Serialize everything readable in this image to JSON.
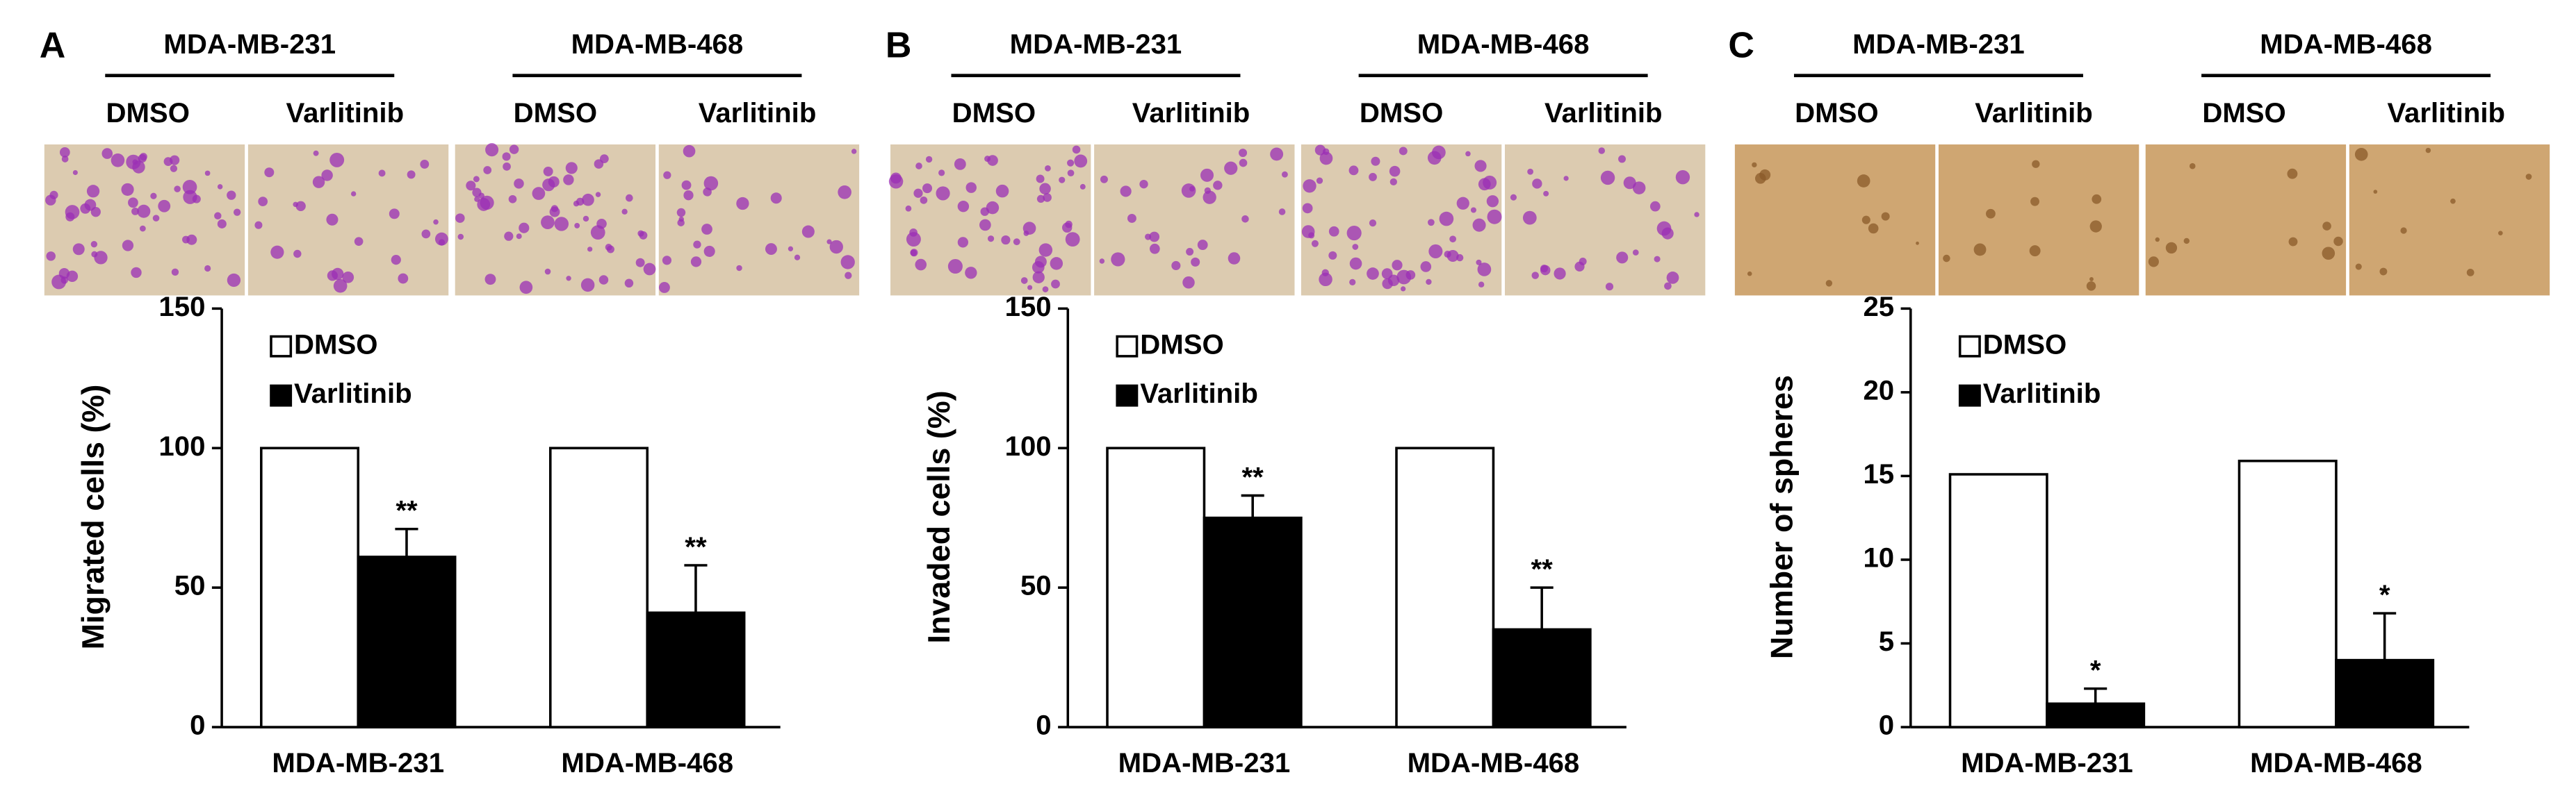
{
  "chart_data": [
    {
      "type": "bar",
      "panel": "A",
      "groups": [
        "MDA-MB-231",
        "MDA-MB-468"
      ],
      "treatments": [
        "DMSO",
        "Varlitinib",
        "DMSO",
        "Varlitinib"
      ],
      "ylabel": "Migrated cells (%)",
      "categories": [
        "MDA-MB-231",
        "MDA-MB-468"
      ],
      "series": [
        {
          "name": "DMSO",
          "color": "#ffffff",
          "values": [
            100,
            100
          ]
        },
        {
          "name": "Varlitinib",
          "color": "#000000",
          "values": [
            61,
            41
          ],
          "errors": [
            10,
            17
          ],
          "annotations": [
            "**",
            "**"
          ]
        }
      ],
      "ylim": [
        0,
        150
      ],
      "yticks": [
        0,
        50,
        100,
        150
      ]
    },
    {
      "type": "bar",
      "panel": "B",
      "groups": [
        "MDA-MB-231",
        "MDA-MB-468"
      ],
      "treatments": [
        "DMSO",
        "Varlitinib",
        "DMSO",
        "Varlitinib"
      ],
      "ylabel": "Invaded cells (%)",
      "categories": [
        "MDA-MB-231",
        "MDA-MB-468"
      ],
      "series": [
        {
          "name": "DMSO",
          "color": "#ffffff",
          "values": [
            100,
            100
          ]
        },
        {
          "name": "Varlitinib",
          "color": "#000000",
          "values": [
            75,
            35
          ],
          "errors": [
            8,
            15
          ],
          "annotations": [
            "**",
            "**"
          ]
        }
      ],
      "ylim": [
        0,
        150
      ],
      "yticks": [
        0,
        50,
        100,
        150
      ]
    },
    {
      "type": "bar",
      "panel": "C",
      "groups": [
        "MDA-MB-231",
        "MDA-MB-468"
      ],
      "treatments": [
        "DMSO",
        "Varlitinib",
        "DMSO",
        "Varlitinib"
      ],
      "ylabel": "Number of spheres",
      "categories": [
        "MDA-MB-231",
        "MDA-MB-468"
      ],
      "series": [
        {
          "name": "DMSO",
          "color": "#ffffff",
          "values": [
            15.1,
            15.9
          ]
        },
        {
          "name": "Varlitinib",
          "color": "#000000",
          "values": [
            1.4,
            4.0
          ],
          "errors": [
            0.9,
            2.8
          ],
          "annotations": [
            "*",
            "*"
          ]
        }
      ],
      "ylim": [
        0,
        25
      ],
      "yticks": [
        0,
        5,
        10,
        15,
        20,
        25
      ]
    }
  ]
}
